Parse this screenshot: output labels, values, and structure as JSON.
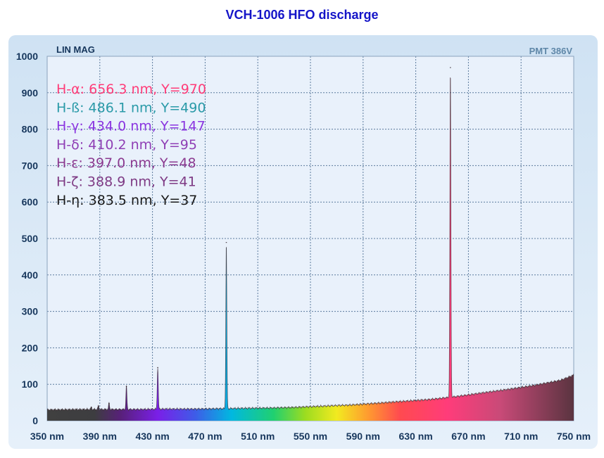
{
  "chart_data": {
    "type": "area",
    "title": "VCH-1006 HFO discharge",
    "top_left_label": "LIN MAG",
    "top_right_label": "PMT 386V",
    "xlabel": "",
    "ylabel": "",
    "xlim": [
      350,
      750
    ],
    "ylim": [
      0,
      1000
    ],
    "x_ticks": [
      350,
      390,
      430,
      470,
      510,
      550,
      590,
      630,
      670,
      710,
      750
    ],
    "x_tick_labels": [
      "350 nm",
      "390 nm",
      "430 nm",
      "470 nm",
      "510 nm",
      "550 nm",
      "590 nm",
      "630 nm",
      "670 nm",
      "710 nm",
      "750 nm"
    ],
    "y_ticks": [
      0,
      100,
      200,
      300,
      400,
      500,
      600,
      700,
      800,
      900,
      1000
    ],
    "y_tick_labels": [
      "0",
      "100",
      "200",
      "300",
      "400",
      "500",
      "600",
      "700",
      "800",
      "900",
      "1000"
    ],
    "grid": true,
    "colors": {
      "title": "#1414c8",
      "tick_text": "#16365c",
      "corner_left": "#16365c",
      "corner_right": "#5f87a8",
      "panel": "#dbe8f6",
      "plot_bg": "#e9f1fb",
      "grid": "#5b7a9d"
    },
    "baseline": [
      [
        350,
        30
      ],
      [
        380,
        31
      ],
      [
        400,
        31
      ],
      [
        420,
        31
      ],
      [
        440,
        32
      ],
      [
        460,
        32
      ],
      [
        480,
        33
      ],
      [
        500,
        34
      ],
      [
        520,
        35
      ],
      [
        540,
        37
      ],
      [
        560,
        40
      ],
      [
        580,
        43
      ],
      [
        600,
        48
      ],
      [
        620,
        53
      ],
      [
        640,
        58
      ],
      [
        660,
        66
      ],
      [
        680,
        76
      ],
      [
        700,
        86
      ],
      [
        720,
        97
      ],
      [
        740,
        111
      ],
      [
        750,
        125
      ]
    ],
    "peaks": [
      {
        "label": "H-α: 656.3 nm, Y=970",
        "x": 656.3,
        "y": 970,
        "color": "#ff3c78"
      },
      {
        "label": "H-ß: 486.1 nm, Y=490",
        "x": 486.1,
        "y": 490,
        "color": "#2a9aa8"
      },
      {
        "label": "H-γ: 434.0 nm, Y=147",
        "x": 434.0,
        "y": 147,
        "color": "#8a35e0"
      },
      {
        "label": "H-δ: 410.2 nm, Y=95",
        "x": 410.2,
        "y": 95,
        "color": "#8f3fb5"
      },
      {
        "label": "H-ε: 397.0 nm, Y=48",
        "x": 397.0,
        "y": 48,
        "color": "#8b3a90"
      },
      {
        "label": "H-ζ: 388.9 nm, Y=41",
        "x": 388.9,
        "y": 41,
        "color": "#7e3a84"
      },
      {
        "label": "H-η: 383.5 nm, Y=37",
        "x": 383.5,
        "y": 37,
        "color": "#1a1a1a"
      }
    ]
  }
}
